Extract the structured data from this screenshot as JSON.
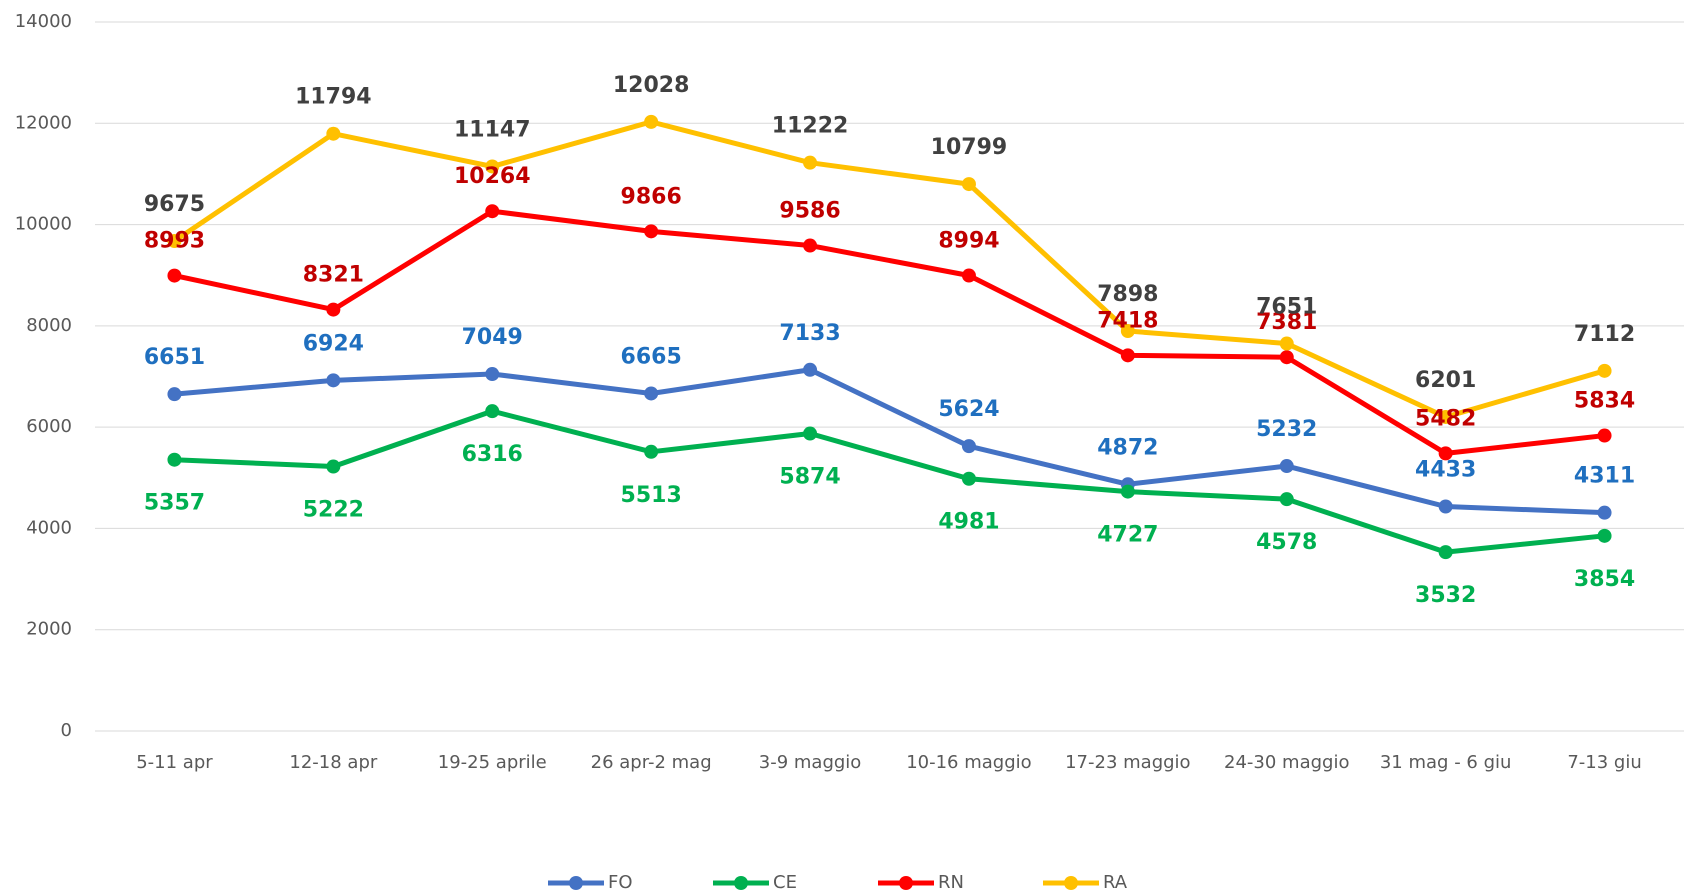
{
  "chart_data": {
    "type": "line",
    "categories": [
      "5-11 apr",
      "12-18 apr",
      "19-25 aprile",
      "26 apr-2 mag",
      "3-9 maggio",
      "10-16 maggio",
      "17-23 maggio",
      "24-30 maggio",
      "31 mag - 6 giu",
      "7-13 giu"
    ],
    "series": [
      {
        "name": "FO",
        "color": "#4472c4",
        "label_color": "#1f6fbf",
        "values": [
          6651,
          6924,
          7049,
          6665,
          7133,
          5624,
          4872,
          5232,
          4433,
          4311
        ]
      },
      {
        "name": "CE",
        "color": "#00b050",
        "label_color": "#00b050",
        "values": [
          5357,
          5222,
          6316,
          5513,
          5874,
          4981,
          4727,
          4578,
          3532,
          3854
        ]
      },
      {
        "name": "RN",
        "color": "#ff0000",
        "label_color": "#c00000",
        "values": [
          8993,
          8321,
          10264,
          9866,
          9586,
          8994,
          7418,
          7381,
          5482,
          5834
        ]
      },
      {
        "name": "RA",
        "color": "#ffc000",
        "label_color": "#404040",
        "values": [
          9675,
          11794,
          11147,
          12028,
          11222,
          10799,
          7898,
          7651,
          6201,
          7112
        ]
      }
    ],
    "ylim": [
      0,
      14000
    ],
    "yticks": [
      0,
      2000,
      4000,
      6000,
      8000,
      10000,
      12000,
      14000
    ],
    "grid": true,
    "legend": "bottom"
  }
}
